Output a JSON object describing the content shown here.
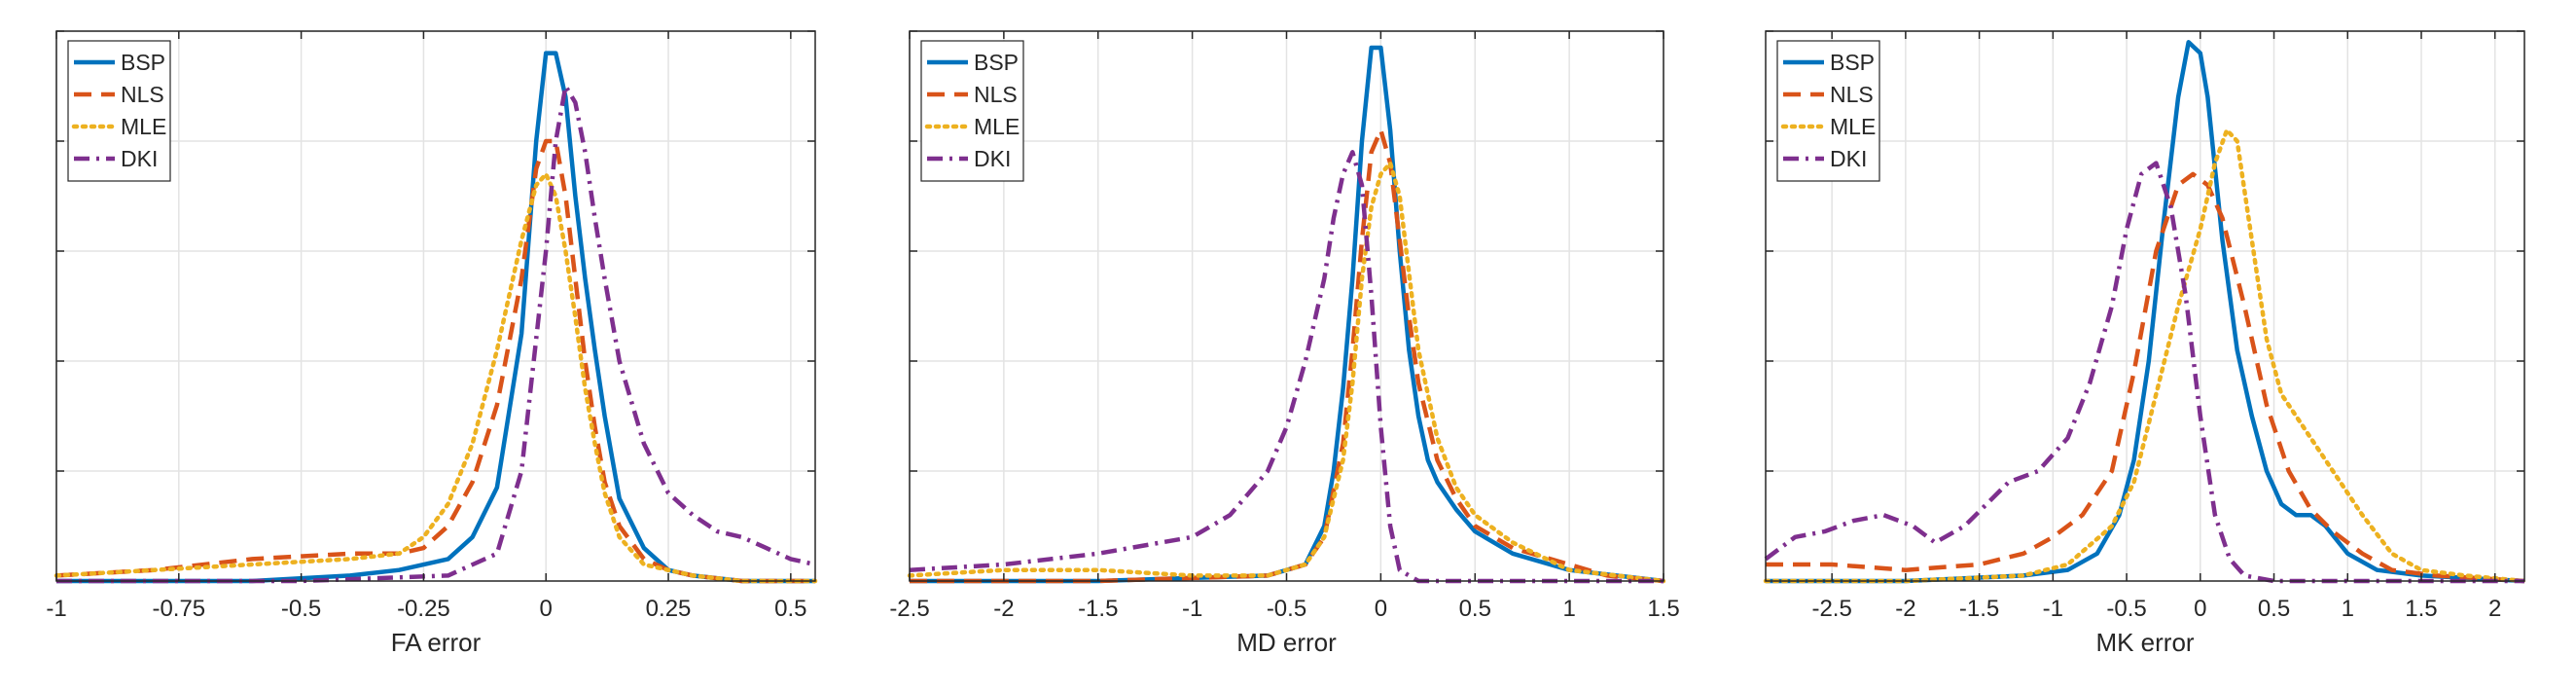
{
  "chart_data": [
    {
      "type": "line",
      "xlabel": "FA error",
      "xlim": [
        -1,
        0.55
      ],
      "xticks": [
        -1,
        -0.75,
        -0.5,
        -0.25,
        0,
        0.25,
        0.5
      ],
      "xtick_labels": [
        "-1",
        "-0.75",
        "-0.5",
        "-0.25",
        "0",
        "0.25",
        "0.5"
      ],
      "ylim": [
        0,
        1.0
      ],
      "yticks": [
        0.2,
        0.4,
        0.6,
        0.8,
        1.0
      ],
      "grid": true,
      "legend_position": "top-left",
      "series": [
        {
          "name": "BSP",
          "color": "#0072BD",
          "dash": "solid",
          "x": [
            -1,
            -0.6,
            -0.4,
            -0.3,
            -0.2,
            -0.15,
            -0.1,
            -0.05,
            -0.02,
            0,
            0.02,
            0.04,
            0.06,
            0.08,
            0.1,
            0.12,
            0.15,
            0.2,
            0.25,
            0.3,
            0.4,
            0.55
          ],
          "y": [
            0,
            0,
            0.01,
            0.02,
            0.04,
            0.08,
            0.17,
            0.45,
            0.8,
            0.96,
            0.96,
            0.88,
            0.7,
            0.55,
            0.42,
            0.3,
            0.15,
            0.06,
            0.02,
            0.01,
            0,
            0
          ]
        },
        {
          "name": "NLS",
          "color": "#D95319",
          "dash": "dash",
          "x": [
            -1,
            -0.8,
            -0.6,
            -0.4,
            -0.3,
            -0.25,
            -0.2,
            -0.15,
            -0.1,
            -0.05,
            -0.02,
            0,
            0.02,
            0.04,
            0.06,
            0.08,
            0.1,
            0.12,
            0.15,
            0.2,
            0.25,
            0.3,
            0.4,
            0.55
          ],
          "y": [
            0.01,
            0.02,
            0.04,
            0.05,
            0.05,
            0.06,
            0.1,
            0.18,
            0.32,
            0.55,
            0.75,
            0.8,
            0.8,
            0.7,
            0.55,
            0.4,
            0.28,
            0.18,
            0.1,
            0.04,
            0.02,
            0.01,
            0,
            0
          ]
        },
        {
          "name": "MLE",
          "color": "#EDB120",
          "dash": "dot",
          "x": [
            -1,
            -0.8,
            -0.6,
            -0.4,
            -0.3,
            -0.25,
            -0.2,
            -0.15,
            -0.1,
            -0.05,
            -0.02,
            0,
            0.02,
            0.04,
            0.06,
            0.08,
            0.1,
            0.12,
            0.15,
            0.2,
            0.25,
            0.3,
            0.4,
            0.55
          ],
          "y": [
            0.01,
            0.02,
            0.03,
            0.04,
            0.05,
            0.08,
            0.14,
            0.25,
            0.42,
            0.62,
            0.72,
            0.74,
            0.7,
            0.6,
            0.48,
            0.35,
            0.25,
            0.16,
            0.08,
            0.03,
            0.02,
            0.01,
            0,
            0
          ]
        },
        {
          "name": "DKI",
          "color": "#7E2F8E",
          "dash": "dashdot",
          "x": [
            -1,
            -0.5,
            -0.2,
            -0.1,
            -0.05,
            0,
            0.02,
            0.04,
            0.06,
            0.08,
            0.1,
            0.12,
            0.15,
            0.2,
            0.25,
            0.3,
            0.35,
            0.4,
            0.45,
            0.5,
            0.55
          ],
          "y": [
            0,
            0,
            0.01,
            0.05,
            0.2,
            0.6,
            0.8,
            0.9,
            0.87,
            0.78,
            0.66,
            0.55,
            0.4,
            0.25,
            0.16,
            0.12,
            0.09,
            0.08,
            0.06,
            0.04,
            0.03
          ]
        }
      ]
    },
    {
      "type": "line",
      "xlabel": "MD error",
      "xlim": [
        -2.5,
        1.5
      ],
      "xticks": [
        -2.5,
        -2,
        -1.5,
        -1,
        -0.5,
        0,
        0.5,
        1,
        1.5
      ],
      "xtick_labels": [
        "-2.5",
        "-2",
        "-1.5",
        "-1",
        "-0.5",
        "0",
        "0.5",
        "1",
        "1.5"
      ],
      "ylim": [
        0,
        1.0
      ],
      "yticks": [
        0.2,
        0.4,
        0.6,
        0.8,
        1.0
      ],
      "grid": true,
      "legend_position": "top-left",
      "series": [
        {
          "name": "BSP",
          "color": "#0072BD",
          "dash": "solid",
          "x": [
            -2.5,
            -1.5,
            -0.6,
            -0.4,
            -0.3,
            -0.25,
            -0.2,
            -0.15,
            -0.1,
            -0.05,
            0,
            0.05,
            0.1,
            0.15,
            0.2,
            0.25,
            0.3,
            0.4,
            0.5,
            0.7,
            1.0,
            1.5
          ],
          "y": [
            0,
            0,
            0.01,
            0.03,
            0.1,
            0.2,
            0.35,
            0.55,
            0.8,
            0.97,
            0.97,
            0.82,
            0.6,
            0.42,
            0.3,
            0.22,
            0.18,
            0.13,
            0.09,
            0.05,
            0.02,
            0
          ]
        },
        {
          "name": "NLS",
          "color": "#D95319",
          "dash": "dash",
          "x": [
            -2.5,
            -1.5,
            -0.6,
            -0.4,
            -0.3,
            -0.2,
            -0.15,
            -0.1,
            -0.05,
            0,
            0.05,
            0.1,
            0.15,
            0.2,
            0.3,
            0.4,
            0.5,
            0.7,
            1.0,
            1.2,
            1.5
          ],
          "y": [
            0,
            0,
            0.01,
            0.03,
            0.08,
            0.25,
            0.42,
            0.62,
            0.78,
            0.82,
            0.76,
            0.62,
            0.48,
            0.36,
            0.22,
            0.15,
            0.1,
            0.06,
            0.03,
            0.01,
            0
          ]
        },
        {
          "name": "MLE",
          "color": "#EDB120",
          "dash": "dot",
          "x": [
            -2.5,
            -2,
            -1.5,
            -1,
            -0.6,
            -0.4,
            -0.3,
            -0.2,
            -0.15,
            -0.1,
            -0.05,
            0,
            0.05,
            0.1,
            0.15,
            0.2,
            0.3,
            0.4,
            0.5,
            0.7,
            1.0,
            1.5
          ],
          "y": [
            0.01,
            0.02,
            0.02,
            0.01,
            0.01,
            0.03,
            0.08,
            0.22,
            0.36,
            0.55,
            0.68,
            0.74,
            0.76,
            0.7,
            0.56,
            0.42,
            0.26,
            0.17,
            0.12,
            0.07,
            0.02,
            0
          ]
        },
        {
          "name": "DKI",
          "color": "#7E2F8E",
          "dash": "dashdot",
          "x": [
            -2.5,
            -2,
            -1.5,
            -1,
            -0.8,
            -0.6,
            -0.5,
            -0.4,
            -0.3,
            -0.25,
            -0.2,
            -0.15,
            -0.1,
            -0.05,
            0,
            0.05,
            0.1,
            0.15,
            0.2,
            0.5,
            1.5
          ],
          "y": [
            0.02,
            0.03,
            0.05,
            0.08,
            0.12,
            0.2,
            0.28,
            0.4,
            0.55,
            0.66,
            0.74,
            0.78,
            0.72,
            0.52,
            0.28,
            0.1,
            0.02,
            0.01,
            0,
            0,
            0
          ]
        }
      ]
    },
    {
      "type": "line",
      "xlabel": "MK error",
      "xlim": [
        -2.95,
        2.2
      ],
      "xticks": [
        -2.5,
        -2,
        -1.5,
        -1,
        -0.5,
        0,
        0.5,
        1,
        1.5,
        2
      ],
      "xtick_labels": [
        "-2.5",
        "-2",
        "-1.5",
        "-1",
        "-0.5",
        "0",
        "0.5",
        "1",
        "1.5",
        "2"
      ],
      "ylim": [
        0,
        1.0
      ],
      "yticks": [
        0.2,
        0.4,
        0.6,
        0.8,
        1.0
      ],
      "grid": true,
      "legend_position": "top-left",
      "series": [
        {
          "name": "BSP",
          "color": "#0072BD",
          "dash": "solid",
          "x": [
            -2.95,
            -2,
            -1.2,
            -0.9,
            -0.7,
            -0.55,
            -0.45,
            -0.35,
            -0.25,
            -0.15,
            -0.08,
            0,
            0.05,
            0.15,
            0.25,
            0.35,
            0.45,
            0.55,
            0.65,
            0.75,
            0.85,
            1.0,
            1.2,
            1.5,
            2.2
          ],
          "y": [
            0,
            0,
            0.01,
            0.02,
            0.05,
            0.12,
            0.22,
            0.4,
            0.65,
            0.88,
            0.98,
            0.96,
            0.88,
            0.62,
            0.42,
            0.3,
            0.2,
            0.14,
            0.12,
            0.12,
            0.1,
            0.05,
            0.02,
            0.01,
            0
          ]
        },
        {
          "name": "NLS",
          "color": "#D95319",
          "dash": "dash",
          "x": [
            -2.95,
            -2.5,
            -2,
            -1.5,
            -1.2,
            -1,
            -0.8,
            -0.6,
            -0.45,
            -0.3,
            -0.15,
            -0.05,
            0.05,
            0.15,
            0.3,
            0.45,
            0.6,
            0.75,
            0.9,
            1.1,
            1.3,
            1.6,
            2.2
          ],
          "y": [
            0.03,
            0.03,
            0.02,
            0.03,
            0.05,
            0.08,
            0.12,
            0.2,
            0.38,
            0.6,
            0.72,
            0.74,
            0.72,
            0.66,
            0.5,
            0.32,
            0.2,
            0.13,
            0.09,
            0.05,
            0.02,
            0.01,
            0
          ]
        },
        {
          "name": "MLE",
          "color": "#EDB120",
          "dash": "dot",
          "x": [
            -2.95,
            -2,
            -1.2,
            -0.9,
            -0.6,
            -0.45,
            -0.3,
            -0.15,
            0,
            0.1,
            0.18,
            0.25,
            0.35,
            0.45,
            0.55,
            0.7,
            0.9,
            1.1,
            1.3,
            1.5,
            1.8,
            2.2
          ],
          "y": [
            0,
            0,
            0.01,
            0.03,
            0.1,
            0.18,
            0.34,
            0.5,
            0.64,
            0.76,
            0.82,
            0.8,
            0.62,
            0.44,
            0.34,
            0.28,
            0.2,
            0.12,
            0.05,
            0.02,
            0.01,
            0
          ]
        },
        {
          "name": "DKI",
          "color": "#7E2F8E",
          "dash": "dashdot",
          "x": [
            -2.95,
            -2.75,
            -2.55,
            -2.35,
            -2.15,
            -1.95,
            -1.8,
            -1.6,
            -1.45,
            -1.3,
            -1.1,
            -0.9,
            -0.75,
            -0.6,
            -0.5,
            -0.4,
            -0.3,
            -0.2,
            -0.1,
            0,
            0.1,
            0.2,
            0.3,
            0.5,
            2.2
          ],
          "y": [
            0.04,
            0.08,
            0.09,
            0.11,
            0.12,
            0.1,
            0.07,
            0.1,
            0.14,
            0.18,
            0.2,
            0.26,
            0.36,
            0.5,
            0.64,
            0.74,
            0.76,
            0.68,
            0.52,
            0.3,
            0.12,
            0.04,
            0.01,
            0,
            0
          ]
        }
      ]
    }
  ]
}
